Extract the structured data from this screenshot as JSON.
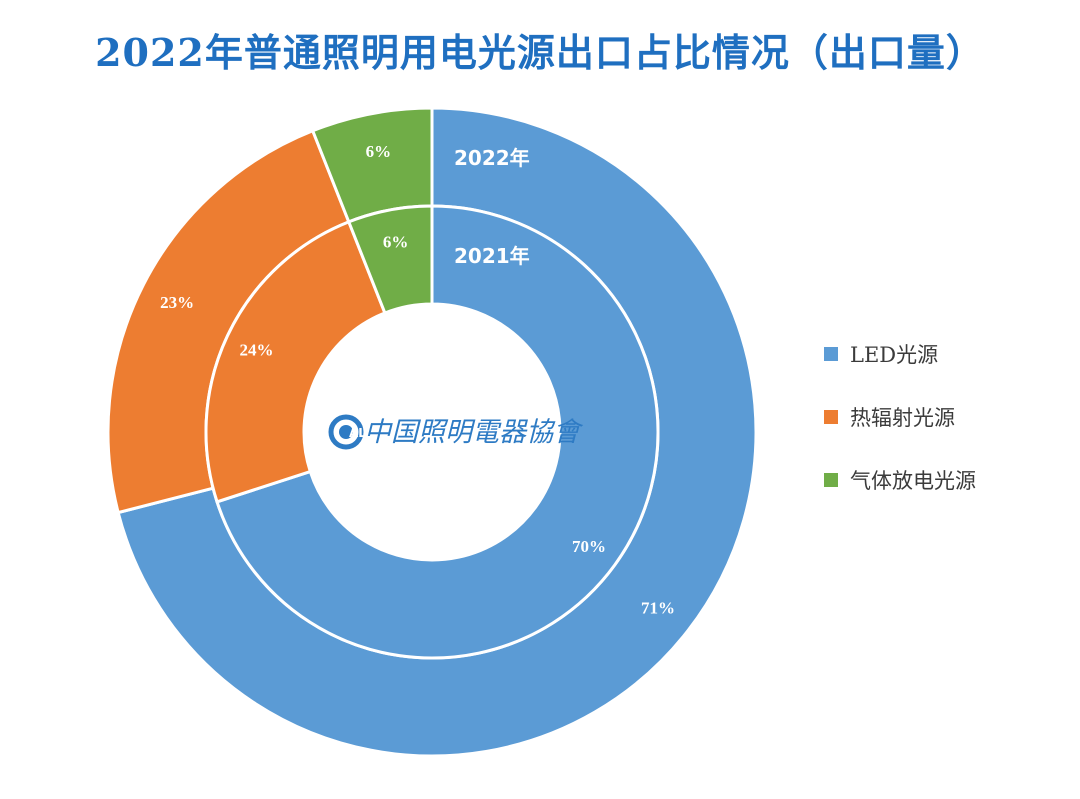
{
  "title": "2022年普通照明用电光源出口占比情况（出口量）",
  "logo": {
    "mark": "CALI",
    "text": "中国照明电器协会",
    "color": "#2E7BC4"
  },
  "chart_data": {
    "type": "pie",
    "categories": [
      "LED光源",
      "热辐射光源",
      "气体放电光源"
    ],
    "colors": [
      "#5B9BD5",
      "#ED7D31",
      "#70AD47"
    ],
    "series": [
      {
        "name": "2022年",
        "ring": "outer",
        "values": [
          71,
          23,
          6
        ],
        "labels": [
          "71%",
          "23%",
          "6%"
        ]
      },
      {
        "name": "2021年",
        "ring": "inner",
        "values": [
          70,
          24,
          6
        ],
        "labels": [
          "70%",
          "24%",
          "6%"
        ]
      }
    ],
    "legend": {
      "position": "right",
      "items": [
        {
          "label": "LED光源",
          "color": "#5B9BD5"
        },
        {
          "label": "热辐射光源",
          "color": "#ED7D31"
        },
        {
          "label": "气体放电光源",
          "color": "#70AD47"
        }
      ]
    }
  }
}
